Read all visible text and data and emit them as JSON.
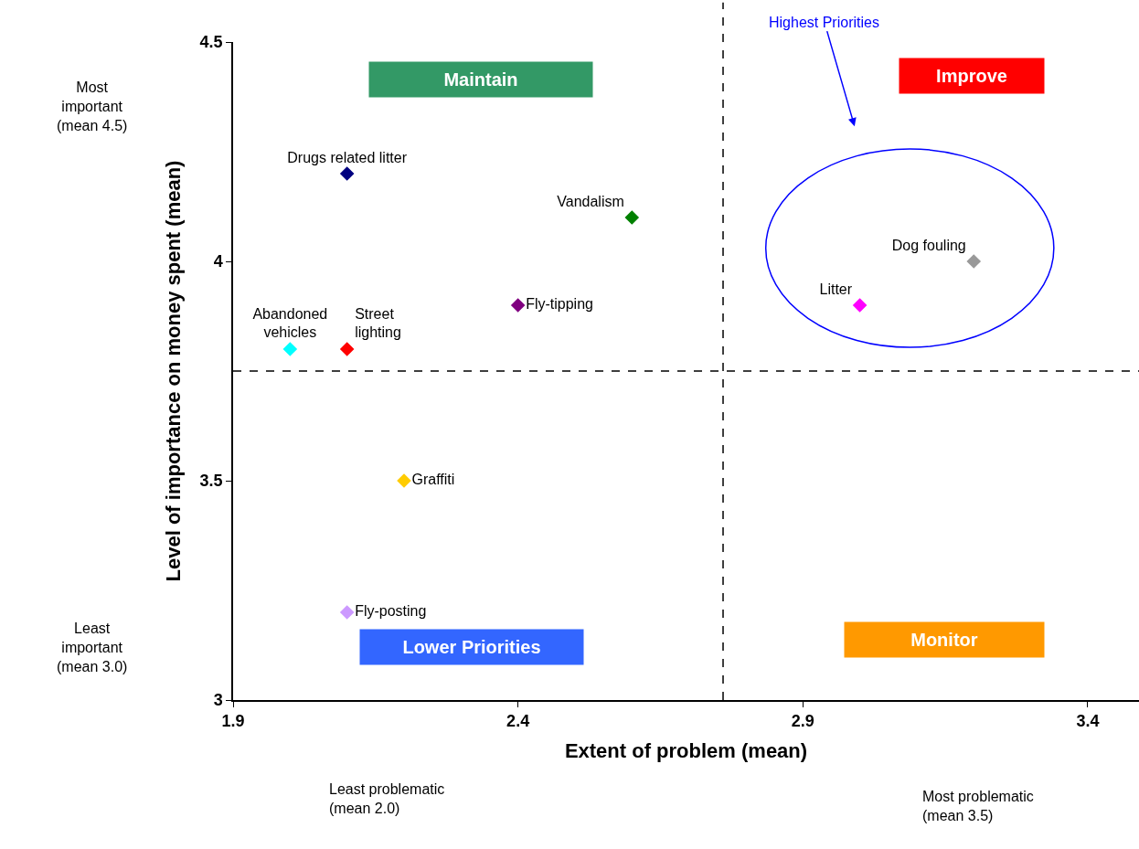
{
  "chart_data": {
    "type": "scatter",
    "xlabel": "Extent of problem (mean)",
    "ylabel": "Level of importance on money spent (mean)",
    "xlim": [
      1.9,
      3.49
    ],
    "xticks": [
      1.9,
      2.4,
      2.9,
      3.4
    ],
    "ylim": [
      3,
      4.5
    ],
    "yticks": [
      3,
      3.5,
      4,
      4.5
    ],
    "marker": "diamond",
    "legend": false,
    "series": [
      {
        "name": "Drugs related litter",
        "color": "#000080",
        "x": [
          2.1
        ],
        "values": [
          4.2
        ]
      },
      {
        "name": "Vandalism",
        "color": "#008000",
        "x": [
          2.6
        ],
        "values": [
          4.1
        ]
      },
      {
        "name": "Fly-tipping",
        "color": "#800080",
        "x": [
          2.4
        ],
        "values": [
          3.9
        ]
      },
      {
        "name": "Abandoned\nvehicles",
        "color": "#00ffff",
        "x": [
          2.0
        ],
        "values": [
          3.8
        ]
      },
      {
        "name": "Street\nlighting",
        "color": "#ff0000",
        "x": [
          2.1
        ],
        "values": [
          3.8
        ]
      },
      {
        "name": "Graffiti",
        "color": "#ffcc00",
        "x": [
          2.2
        ],
        "values": [
          3.5
        ]
      },
      {
        "name": "Fly-posting",
        "color": "#cc99ff",
        "x": [
          2.1
        ],
        "values": [
          3.2
        ]
      },
      {
        "name": "Litter",
        "color": "#ff00ff",
        "x": [
          3.0
        ],
        "values": [
          3.9
        ]
      },
      {
        "name": "Dog fouling",
        "color": "#999999",
        "x": [
          3.2
        ],
        "values": [
          4.0
        ]
      }
    ],
    "ref_lines": [
      {
        "axis": "x",
        "value": 2.76,
        "color": "#000000",
        "line_style": "dashed"
      },
      {
        "axis": "y",
        "value": 3.75,
        "color": "#000000",
        "line_style": "dashed"
      }
    ],
    "annotations": [
      "Maintain",
      "Improve",
      "Lower Priorities",
      "Monitor",
      "Highest Priorities",
      "Most\nimportant\n(mean 4.5)",
      "Least\nimportant\n(mean 3.0)",
      "Least problematic\n(mean 2.0)",
      "Most problematic\n(mean 3.5)"
    ]
  }
}
